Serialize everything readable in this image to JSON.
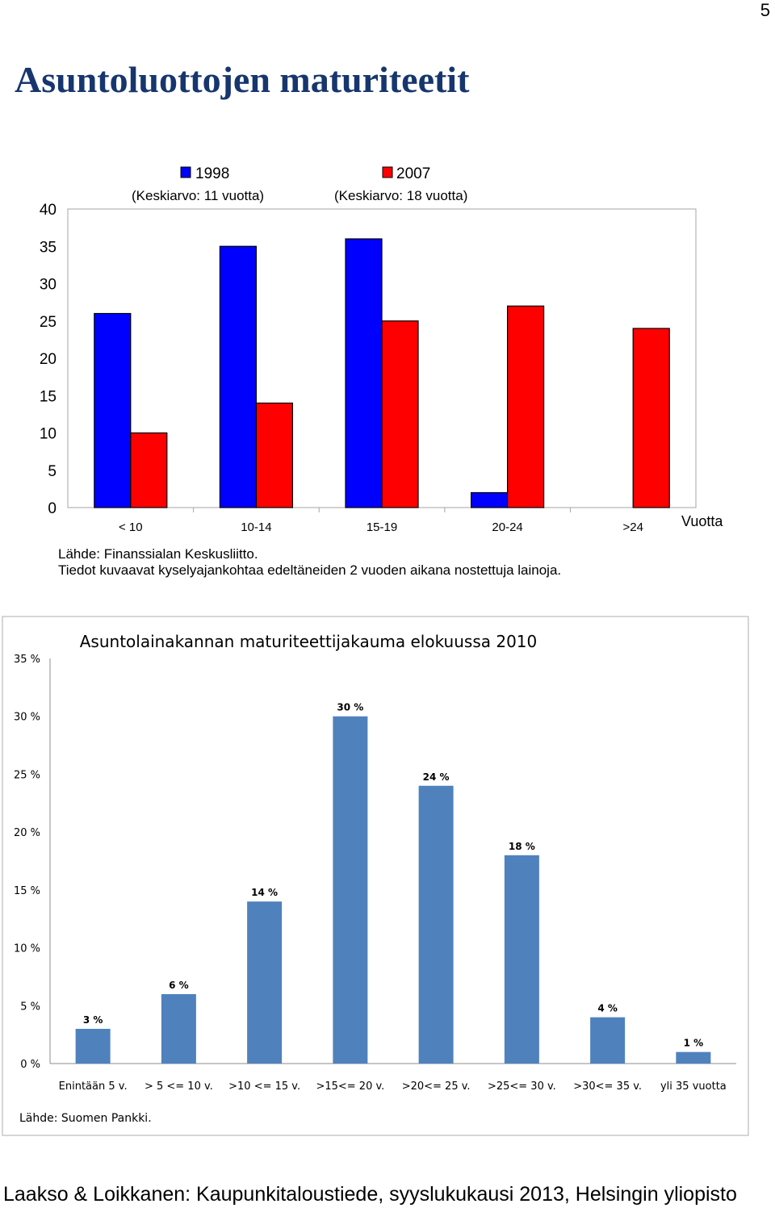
{
  "page": {
    "number": "5",
    "title": "Asuntoluottojen maturiteetit",
    "footer": "Laakso & Loikkanen: Kaupunkitaloustiede, syyslukukausi 2013, Helsingin yliopisto"
  },
  "chart_data": [
    {
      "type": "bar",
      "title": "",
      "ylabel": "%",
      "xlabel": "Vuotta",
      "ylim": [
        0,
        40
      ],
      "yticks": [
        "0",
        "5",
        "10",
        "15",
        "20",
        "25",
        "30",
        "35",
        "40"
      ],
      "categories": [
        "< 10",
        "10-14",
        "15-19",
        "20-24",
        ">24"
      ],
      "series": [
        {
          "name": "1998",
          "note": "(Keskiarvo: 11 vuotta)",
          "color": "#0000ff",
          "values": [
            26,
            35,
            36,
            2,
            0
          ]
        },
        {
          "name": "2007",
          "note": "(Keskiarvo: 18 vuotta)",
          "color": "#ff0000",
          "values": [
            10,
            14,
            25,
            27,
            24
          ]
        }
      ],
      "source": "Lähde: Finanssialan Keskusliitto.",
      "note": "Tiedot kuvaavat kyselyajankohtaa edeltäneiden 2 vuoden aikana nostettuja lainoja.",
      "grid": false,
      "legend": "top"
    },
    {
      "type": "bar",
      "title": "Asuntolainakannan maturiteettijakauma elokuussa 2010",
      "ylim": [
        0,
        35
      ],
      "yticks": [
        "0 %",
        "5 %",
        "10 %",
        "15 %",
        "20 %",
        "25 %",
        "30 %",
        "35 %"
      ],
      "categories": [
        "Enintään 5 v.",
        "> 5 <= 10 v.",
        ">10 <= 15 v.",
        ">15<= 20 v.",
        ">20<= 25 v.",
        ">25<= 30 v.",
        ">30<= 35 v.",
        "yli 35 vuotta"
      ],
      "values": [
        3,
        6,
        14,
        30,
        24,
        18,
        4,
        1
      ],
      "labels": [
        "3 %",
        "6 %",
        "14 %",
        "30 %",
        "24 %",
        "18 %",
        "4 %",
        "1 %"
      ],
      "color": "#4f81bd",
      "source": "Lähde: Suomen Pankki.",
      "grid": false,
      "legend": "none"
    }
  ]
}
